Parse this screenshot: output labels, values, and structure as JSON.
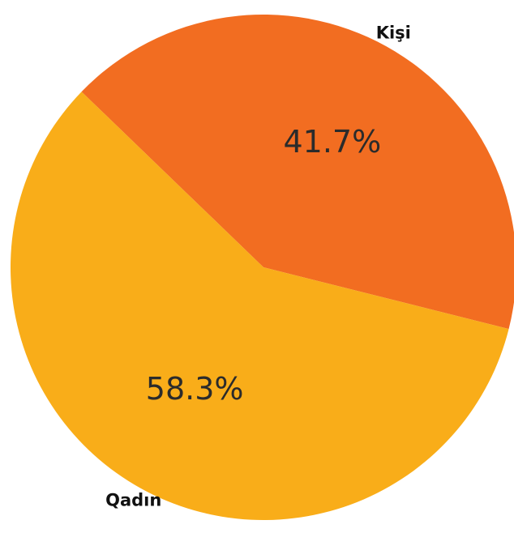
{
  "chart_data": {
    "type": "pie",
    "slices": [
      {
        "label": "Kişi",
        "value": 41.7,
        "display": "41.7%",
        "color": "#F26D21"
      },
      {
        "label": "Qadın",
        "value": 58.3,
        "display": "58.3%",
        "color": "#F9AD19"
      }
    ],
    "start_angle_deg": 314,
    "direction": "clockwise"
  }
}
